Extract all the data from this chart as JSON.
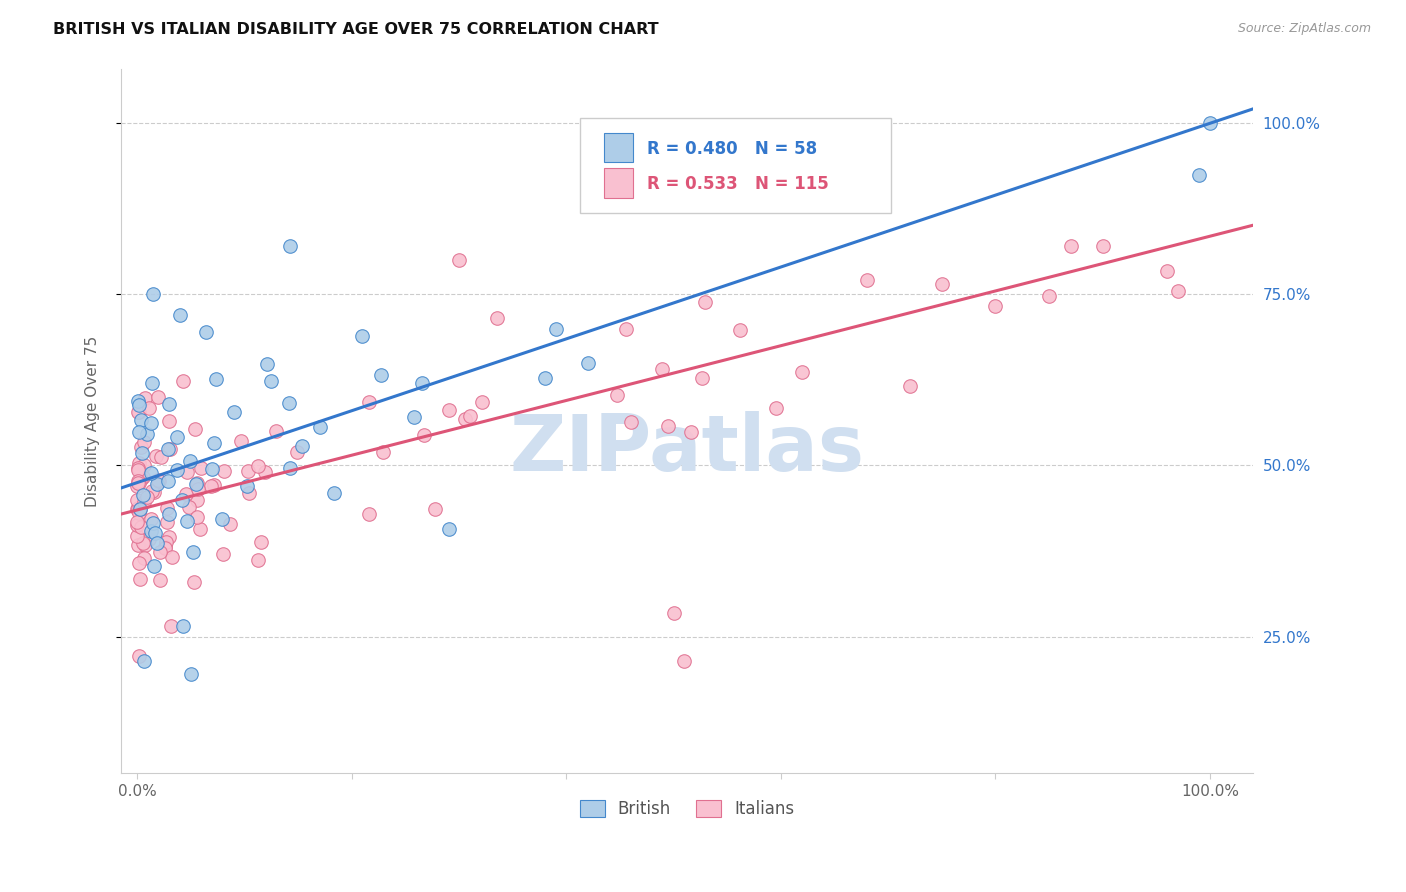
{
  "title": "BRITISH VS ITALIAN DISABILITY AGE OVER 75 CORRELATION CHART",
  "source": "Source: ZipAtlas.com",
  "ylabel": "Disability Age Over 75",
  "legend_british": "British",
  "legend_italians": "Italians",
  "british_R": "R = 0.480",
  "british_N": "N = 58",
  "italian_R": "R = 0.533",
  "italian_N": "N = 115",
  "blue_fill": "#aecde8",
  "blue_edge": "#4488cc",
  "pink_fill": "#f9c0d0",
  "pink_edge": "#e07090",
  "blue_line": "#3377cc",
  "pink_line": "#dd5577",
  "watermark_color": "#d0dff0",
  "background_color": "#ffffff",
  "brit_line_intercept": 0.475,
  "brit_line_slope": 0.525,
  "ital_line_intercept": 0.435,
  "ital_line_slope": 0.4,
  "xlim_min": -0.015,
  "xlim_max": 1.04,
  "ylim_min": 0.05,
  "ylim_max": 1.08
}
